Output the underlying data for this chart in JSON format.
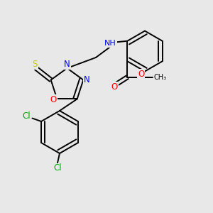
{
  "bg_color": "#e8e8e8",
  "atom_colors": {
    "S": "#c8c800",
    "N": "#0000ff",
    "O": "#ff0000",
    "Cl": "#00aa00",
    "C": "#000000",
    "H": "#000000"
  },
  "bond_width": 1.4,
  "font_size": 8.5,
  "xlim": [
    0,
    10
  ],
  "ylim": [
    0,
    10
  ]
}
